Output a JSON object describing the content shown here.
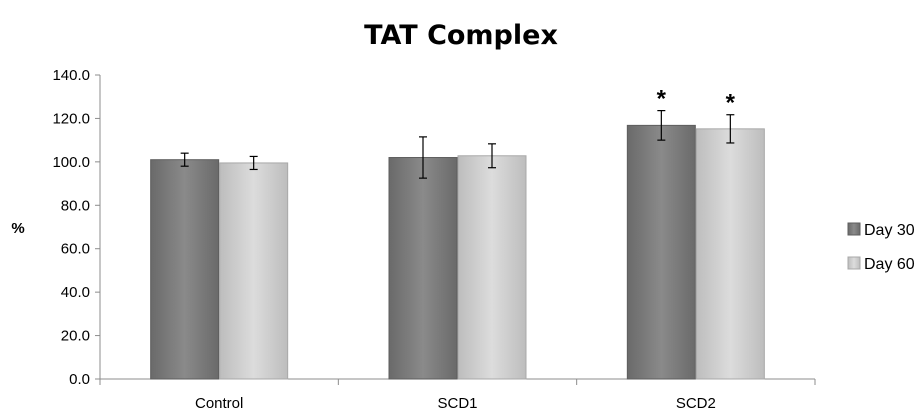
{
  "chart_data": {
    "type": "bar",
    "title": "TAT Complex",
    "xlabel": "",
    "ylabel": "%",
    "ylim": [
      0,
      140
    ],
    "yticks": [
      "0.0",
      "20.0",
      "40.0",
      "60.0",
      "80.0",
      "100.0",
      "120.0",
      "140.0"
    ],
    "categories": [
      "Control",
      "SCD1",
      "SCD2"
    ],
    "series": [
      {
        "name": "Day 30",
        "color": "#7a7a7a",
        "values": [
          101.0,
          102.0,
          116.8
        ],
        "error": [
          3.0,
          9.5,
          6.8
        ],
        "annotations": [
          "",
          "",
          "*"
        ]
      },
      {
        "name": "Day 60",
        "color": "#cdcdcd",
        "values": [
          99.5,
          102.8,
          115.2
        ],
        "error": [
          3.0,
          5.5,
          6.5
        ],
        "annotations": [
          "",
          "",
          "*"
        ]
      }
    ],
    "legend_position": "right",
    "grid": false
  }
}
